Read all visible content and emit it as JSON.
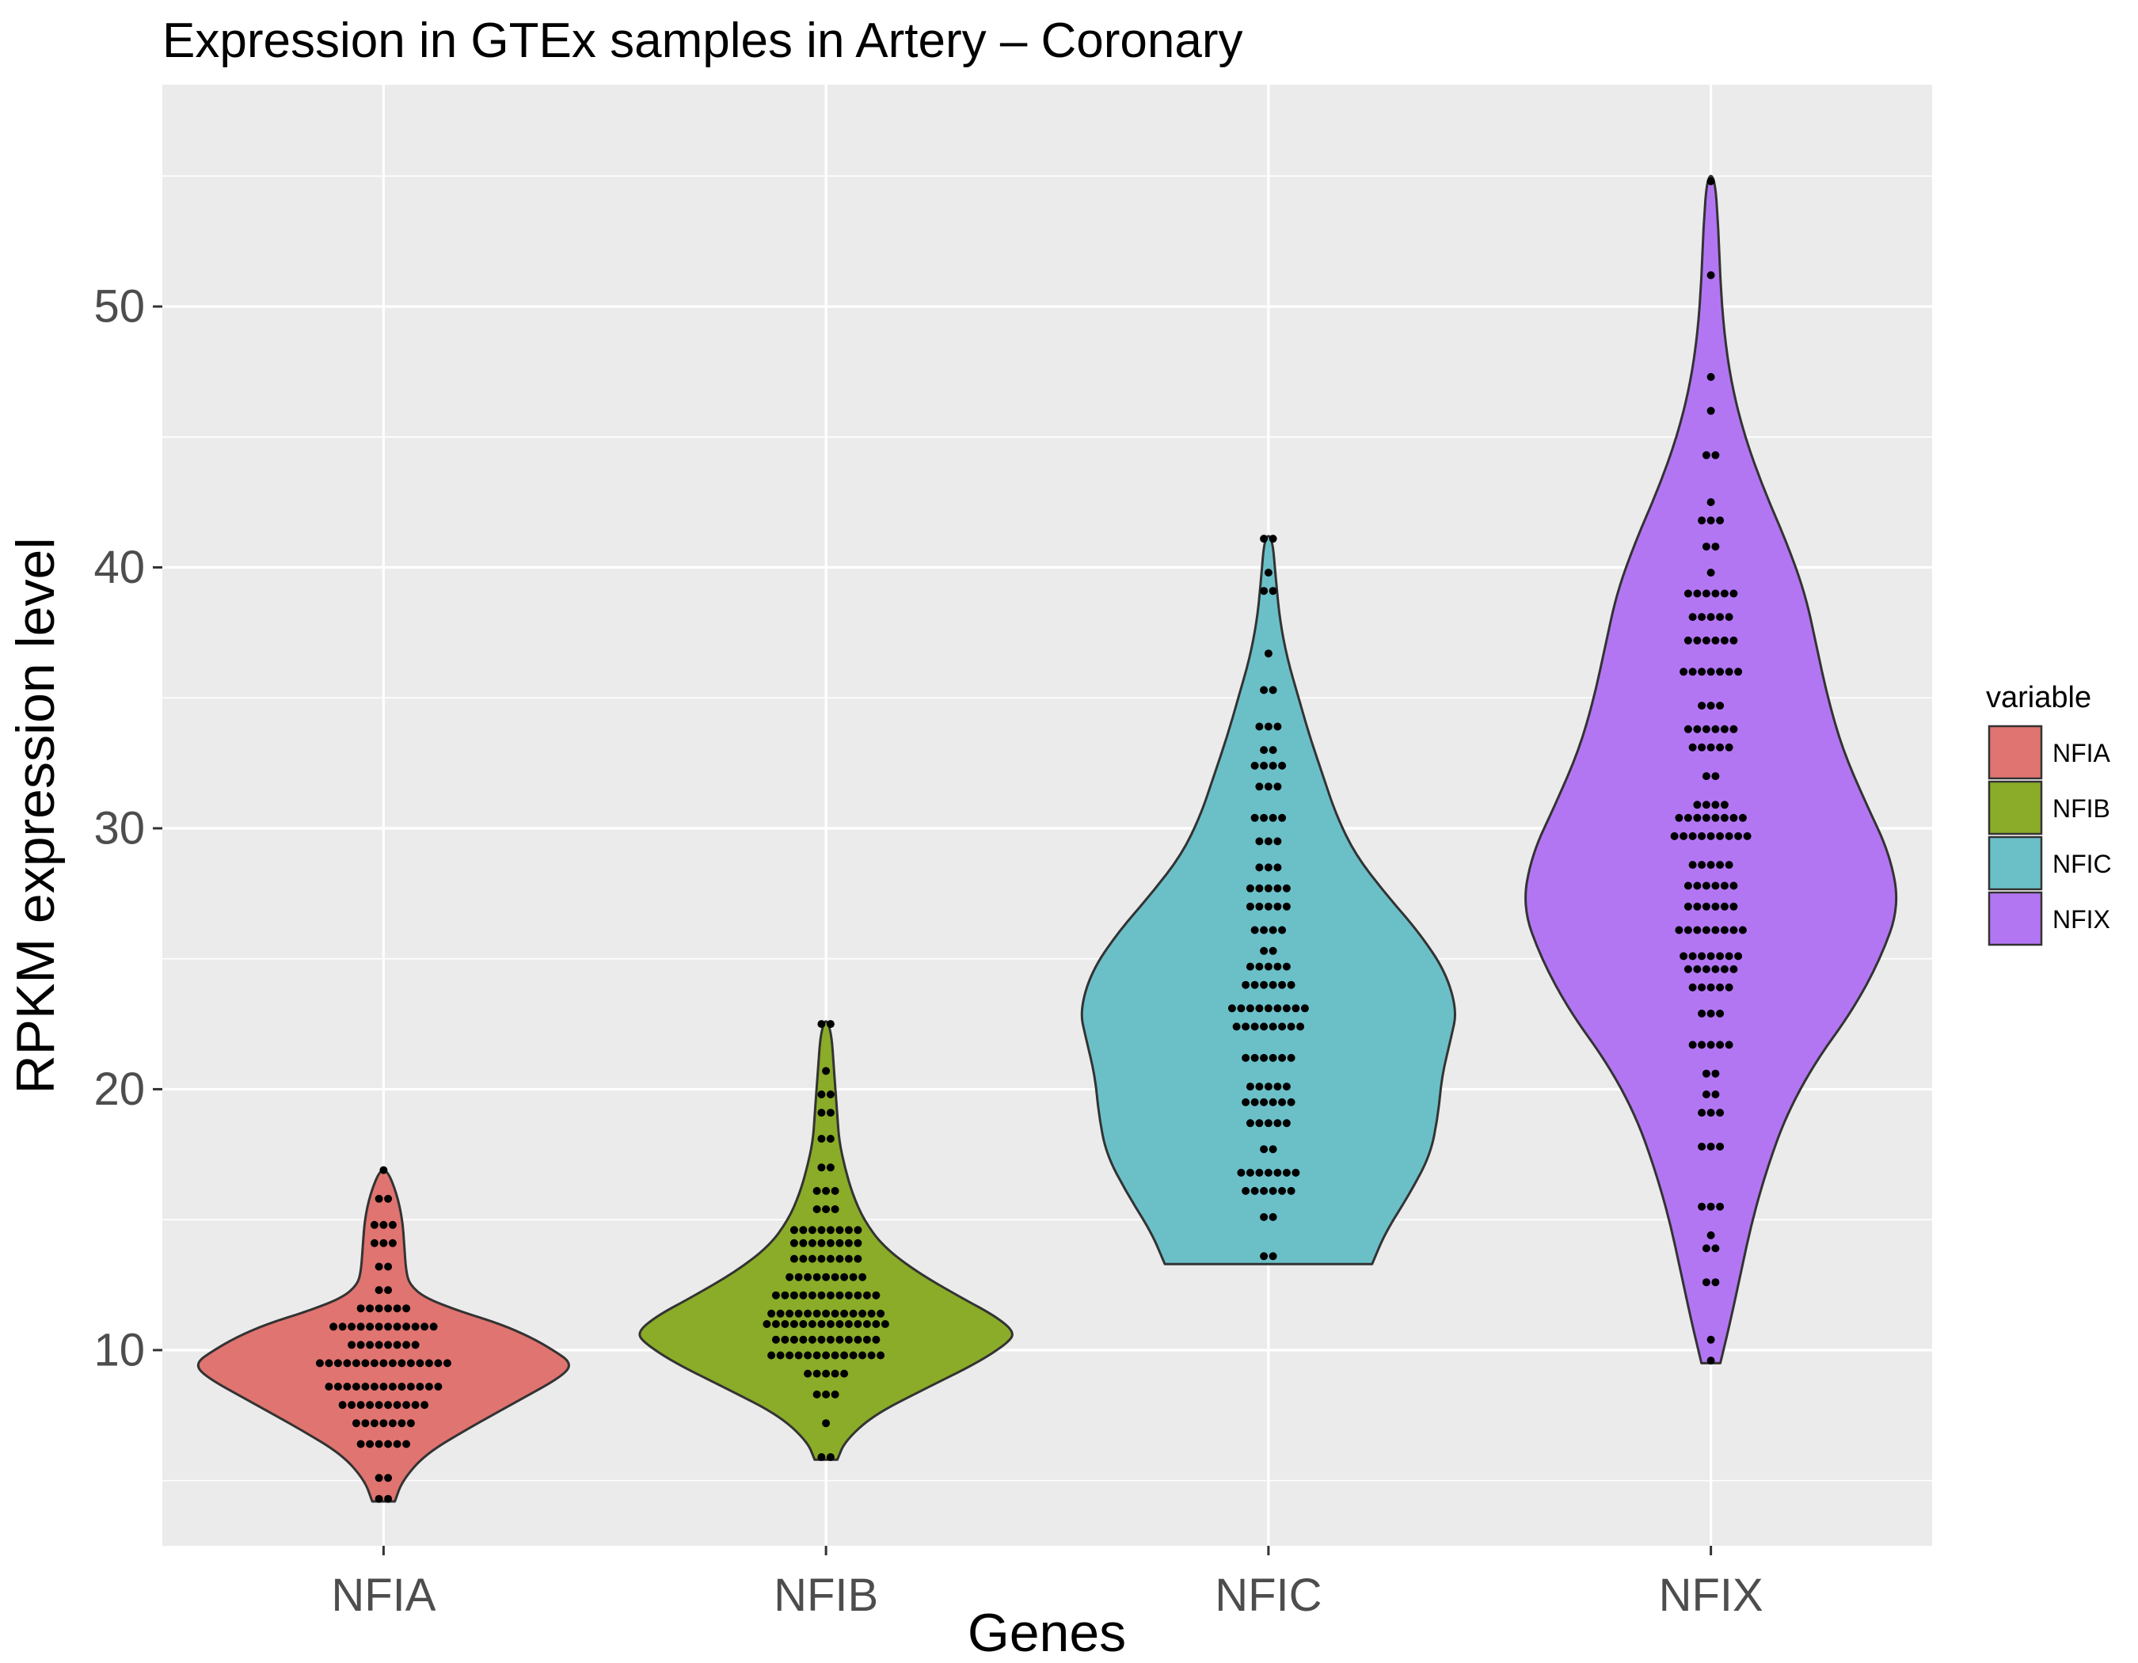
{
  "chart_data": {
    "type": "violin",
    "title": "Expression in GTEx samples in Artery – Coronary",
    "xlabel": "Genes",
    "ylabel": "RPKM expression level",
    "ylim": [
      2.5,
      58.5
    ],
    "yticks": [
      10,
      20,
      30,
      40,
      50
    ],
    "grid": true,
    "legend": {
      "title": "variable",
      "position": "right"
    },
    "categories": [
      "NFIA",
      "NFIB",
      "NFIC",
      "NFIX"
    ],
    "series": [
      {
        "name": "NFIA",
        "color": "#E07470",
        "min": 4.2,
        "max": 16.9,
        "density": [
          [
            4.2,
            0.06
          ],
          [
            5.0,
            0.1
          ],
          [
            6.0,
            0.22
          ],
          [
            7.0,
            0.45
          ],
          [
            8.0,
            0.7
          ],
          [
            9.0,
            0.95
          ],
          [
            9.5,
            1.0
          ],
          [
            10.0,
            0.9
          ],
          [
            10.5,
            0.78
          ],
          [
            11.0,
            0.62
          ],
          [
            11.5,
            0.4
          ],
          [
            12.0,
            0.22
          ],
          [
            12.5,
            0.14
          ],
          [
            13.0,
            0.12
          ],
          [
            14.0,
            0.11
          ],
          [
            15.0,
            0.1
          ],
          [
            16.0,
            0.07
          ],
          [
            16.9,
            0.02
          ]
        ],
        "points": [
          [
            4.3,
            2
          ],
          [
            5.1,
            2
          ],
          [
            6.4,
            6
          ],
          [
            7.2,
            7
          ],
          [
            7.9,
            10
          ],
          [
            8.6,
            13
          ],
          [
            9.5,
            15
          ],
          [
            10.2,
            8
          ],
          [
            10.9,
            12
          ],
          [
            11.6,
            6
          ],
          [
            12.3,
            2
          ],
          [
            13.2,
            2
          ],
          [
            14.1,
            3
          ],
          [
            14.8,
            3
          ],
          [
            15.8,
            2
          ],
          [
            16.9,
            1
          ]
        ]
      },
      {
        "name": "NFIB",
        "color": "#8AAC28",
        "min": 5.8,
        "max": 22.6,
        "density": [
          [
            5.8,
            0.06
          ],
          [
            6.5,
            0.1
          ],
          [
            7.5,
            0.25
          ],
          [
            8.5,
            0.52
          ],
          [
            9.5,
            0.8
          ],
          [
            10.3,
            0.97
          ],
          [
            10.7,
            1.0
          ],
          [
            11.3,
            0.9
          ],
          [
            12.0,
            0.72
          ],
          [
            13.0,
            0.48
          ],
          [
            14.0,
            0.3
          ],
          [
            15.0,
            0.2
          ],
          [
            16.0,
            0.14
          ],
          [
            17.0,
            0.1
          ],
          [
            18.0,
            0.07
          ],
          [
            19.0,
            0.06
          ],
          [
            20.0,
            0.05
          ],
          [
            21.0,
            0.04
          ],
          [
            22.0,
            0.03
          ],
          [
            22.6,
            0.01
          ]
        ],
        "points": [
          [
            5.9,
            2
          ],
          [
            7.2,
            1
          ],
          [
            8.3,
            3
          ],
          [
            9.1,
            5
          ],
          [
            9.8,
            13
          ],
          [
            10.4,
            12
          ],
          [
            11.0,
            14
          ],
          [
            11.4,
            13
          ],
          [
            12.1,
            12
          ],
          [
            12.8,
            9
          ],
          [
            13.5,
            8
          ],
          [
            14.1,
            8
          ],
          [
            14.6,
            8
          ],
          [
            15.4,
            3
          ],
          [
            16.1,
            3
          ],
          [
            17.0,
            2
          ],
          [
            18.1,
            2
          ],
          [
            19.1,
            2
          ],
          [
            19.8,
            2
          ],
          [
            20.7,
            1
          ],
          [
            22.5,
            2
          ]
        ]
      },
      {
        "name": "NFIC",
        "color": "#6BC0C8",
        "min": 13.3,
        "max": 41.2,
        "density": [
          [
            13.3,
            0.55
          ],
          [
            14.5,
            0.62
          ],
          [
            16.0,
            0.75
          ],
          [
            17.5,
            0.86
          ],
          [
            19.0,
            0.9
          ],
          [
            20.5,
            0.92
          ],
          [
            22.0,
            0.97
          ],
          [
            23.0,
            1.0
          ],
          [
            24.5,
            0.94
          ],
          [
            26.0,
            0.8
          ],
          [
            27.5,
            0.62
          ],
          [
            29.0,
            0.46
          ],
          [
            30.5,
            0.36
          ],
          [
            32.0,
            0.29
          ],
          [
            33.5,
            0.22
          ],
          [
            35.0,
            0.16
          ],
          [
            36.5,
            0.1
          ],
          [
            38.0,
            0.06
          ],
          [
            39.5,
            0.04
          ],
          [
            41.2,
            0.02
          ]
        ],
        "points": [
          [
            13.6,
            2
          ],
          [
            15.1,
            2
          ],
          [
            16.1,
            6
          ],
          [
            16.8,
            7
          ],
          [
            17.7,
            2
          ],
          [
            18.7,
            5
          ],
          [
            19.5,
            6
          ],
          [
            20.1,
            5
          ],
          [
            21.2,
            6
          ],
          [
            22.4,
            8
          ],
          [
            23.1,
            9
          ],
          [
            24.0,
            6
          ],
          [
            24.7,
            5
          ],
          [
            25.3,
            2
          ],
          [
            26.1,
            4
          ],
          [
            27.0,
            5
          ],
          [
            27.7,
            5
          ],
          [
            28.5,
            3
          ],
          [
            29.5,
            3
          ],
          [
            30.4,
            4
          ],
          [
            31.6,
            3
          ],
          [
            32.4,
            4
          ],
          [
            33.0,
            2
          ],
          [
            33.9,
            3
          ],
          [
            35.3,
            2
          ],
          [
            36.7,
            1
          ],
          [
            39.1,
            2
          ],
          [
            39.8,
            1
          ],
          [
            41.1,
            2
          ]
        ]
      },
      {
        "name": "NFIX",
        "color": "#B376F3",
        "min": 9.5,
        "max": 55.0,
        "density": [
          [
            9.5,
            0.05
          ],
          [
            11.0,
            0.1
          ],
          [
            13.0,
            0.16
          ],
          [
            15.0,
            0.22
          ],
          [
            17.0,
            0.3
          ],
          [
            19.0,
            0.4
          ],
          [
            21.0,
            0.55
          ],
          [
            23.0,
            0.75
          ],
          [
            25.0,
            0.9
          ],
          [
            27.0,
            1.0
          ],
          [
            29.0,
            0.95
          ],
          [
            31.0,
            0.82
          ],
          [
            33.0,
            0.7
          ],
          [
            35.0,
            0.62
          ],
          [
            37.0,
            0.56
          ],
          [
            39.0,
            0.5
          ],
          [
            41.0,
            0.4
          ],
          [
            43.0,
            0.28
          ],
          [
            45.0,
            0.18
          ],
          [
            47.0,
            0.11
          ],
          [
            49.0,
            0.07
          ],
          [
            51.0,
            0.05
          ],
          [
            53.0,
            0.04
          ],
          [
            55.0,
            0.02
          ]
        ],
        "points": [
          [
            9.6,
            1
          ],
          [
            10.4,
            1
          ],
          [
            12.6,
            2
          ],
          [
            13.9,
            2
          ],
          [
            14.4,
            1
          ],
          [
            15.5,
            3
          ],
          [
            17.8,
            3
          ],
          [
            19.1,
            3
          ],
          [
            19.8,
            2
          ],
          [
            20.6,
            2
          ],
          [
            21.7,
            5
          ],
          [
            22.9,
            3
          ],
          [
            23.9,
            5
          ],
          [
            24.6,
            6
          ],
          [
            25.1,
            7
          ],
          [
            26.1,
            8
          ],
          [
            27.0,
            6
          ],
          [
            27.8,
            6
          ],
          [
            28.6,
            5
          ],
          [
            29.7,
            9
          ],
          [
            30.4,
            8
          ],
          [
            30.9,
            4
          ],
          [
            32.0,
            2
          ],
          [
            33.1,
            5
          ],
          [
            33.8,
            6
          ],
          [
            34.7,
            3
          ],
          [
            36.0,
            7
          ],
          [
            37.2,
            6
          ],
          [
            38.1,
            5
          ],
          [
            39.0,
            6
          ],
          [
            39.8,
            1
          ],
          [
            40.8,
            2
          ],
          [
            41.8,
            3
          ],
          [
            42.5,
            1
          ],
          [
            44.3,
            2
          ],
          [
            46.0,
            1
          ],
          [
            47.3,
            1
          ],
          [
            51.2,
            1
          ],
          [
            54.8,
            1
          ]
        ]
      }
    ]
  }
}
